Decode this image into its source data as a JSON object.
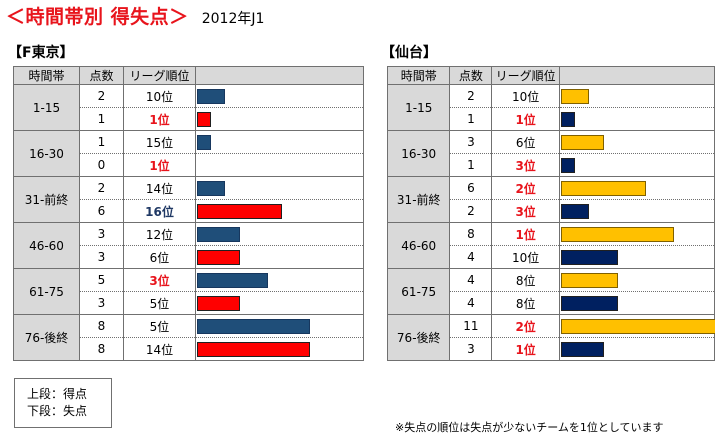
{
  "header": {
    "title": "＜時間帯別 得失点＞",
    "subtitle": "2012年J1"
  },
  "columns": {
    "time": "時間帯",
    "points": "点数",
    "rank": "リーグ順位"
  },
  "legend": {
    "upper": "上段：得点",
    "lower": "下段：失点"
  },
  "note": "※失点の順位は失点が少ないチームを1位としています",
  "colors": {
    "fctokyo_scored": "#1f4e79",
    "fctokyo_conceded": "#ff0000",
    "sendai_scored": "#ffc000",
    "sendai_conceded": "#002060",
    "rank_top": "#e8141c",
    "rank_worst": "#1f3864"
  },
  "chart_data": [
    {
      "type": "bar",
      "title": "【F東京】",
      "categories": [
        "1-15",
        "16-30",
        "31-前終",
        "46-60",
        "61-75",
        "76-後終"
      ],
      "bar_max": 11,
      "series": [
        {
          "name": "上段：得点",
          "values": [
            2,
            1,
            2,
            3,
            5,
            8
          ],
          "ranks": [
            "10位",
            "15位",
            "14位",
            "12位",
            "3位",
            "5位"
          ]
        },
        {
          "name": "下段：失点",
          "values": [
            1,
            0,
            6,
            3,
            3,
            8
          ],
          "ranks": [
            "1位",
            "1位",
            "16位",
            "6位",
            "5位",
            "14位"
          ]
        }
      ]
    },
    {
      "type": "bar",
      "title": "【仙台】",
      "categories": [
        "1-15",
        "16-30",
        "31-前終",
        "46-60",
        "61-75",
        "76-後終"
      ],
      "bar_max": 11,
      "series": [
        {
          "name": "上段：得点",
          "values": [
            2,
            3,
            6,
            8,
            4,
            11
          ],
          "ranks": [
            "10位",
            "6位",
            "2位",
            "1位",
            "8位",
            "2位"
          ]
        },
        {
          "name": "下段：失点",
          "values": [
            1,
            1,
            2,
            4,
            4,
            3
          ],
          "ranks": [
            "1位",
            "3位",
            "3位",
            "10位",
            "8位",
            "1位"
          ]
        }
      ]
    }
  ]
}
